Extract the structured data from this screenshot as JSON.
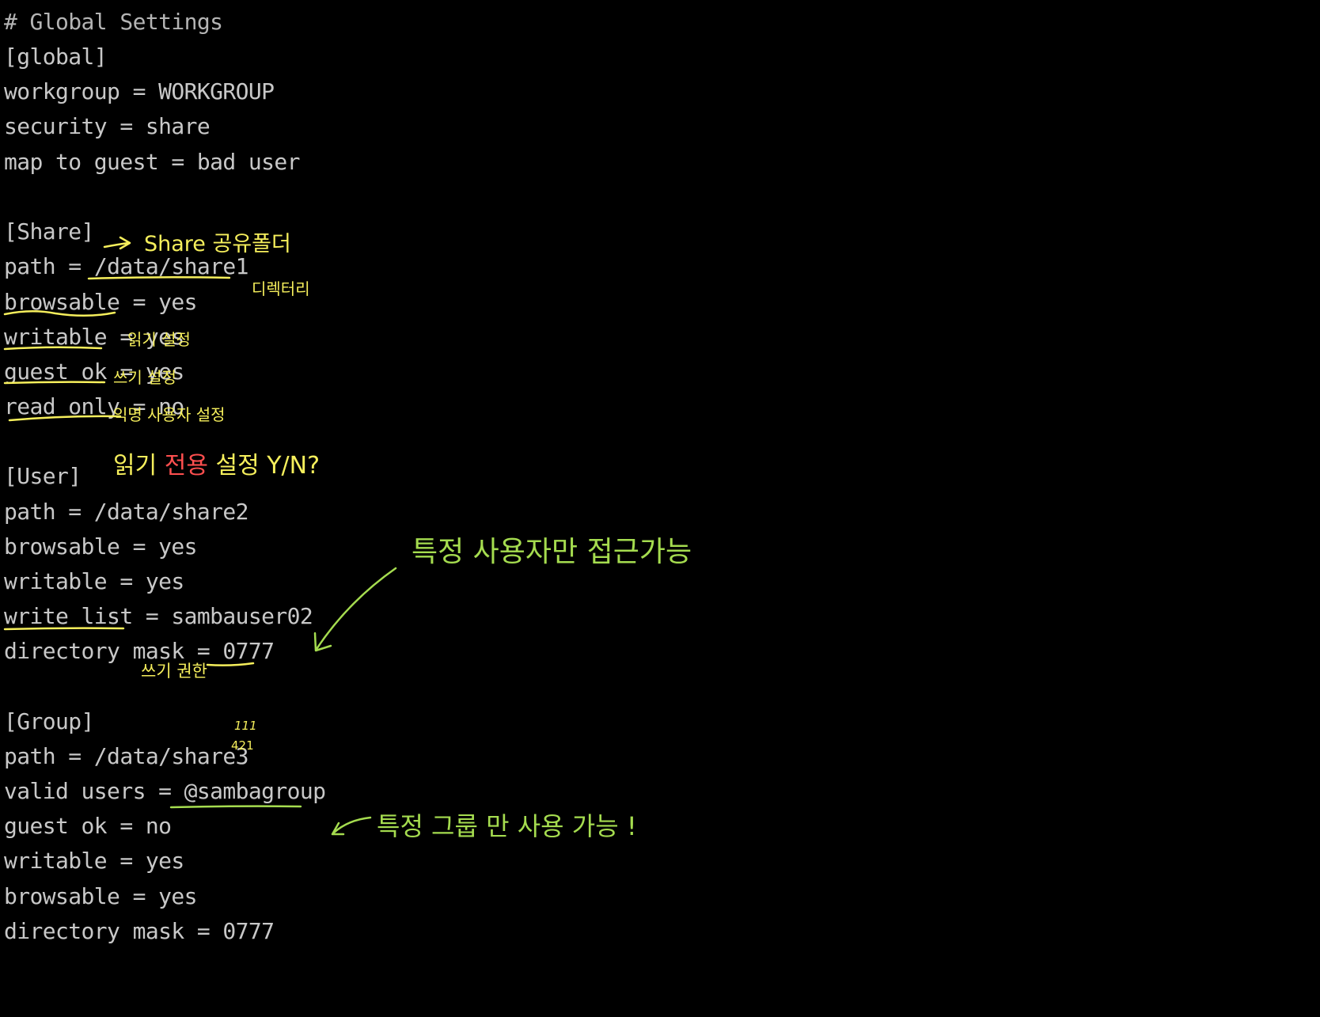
{
  "config": {
    "global_comment": "# Global Settings",
    "global_header": "[global]",
    "global_workgroup": "workgroup = WORKGROUP",
    "global_security": "security = share",
    "global_map_to_guest": "map to guest = bad user",
    "share_header": "[Share]",
    "share_path_key": "path = ",
    "share_path_value": "/data/share1",
    "share_browsable_key": "browsable",
    "share_browsable_rest": " = yes",
    "share_writable_key": "writable",
    "share_writable_rest": " = yes",
    "share_guest_ok_key": "guest ok",
    "share_guest_ok_rest": " = yes",
    "share_read_only_key": "read only",
    "share_read_only_rest": " = no",
    "user_header": "[User]",
    "user_path": "path = /data/share2",
    "user_browsable": "browsable = yes",
    "user_writable": "writable = yes",
    "user_write_list_key": "write list",
    "user_write_list_rest": " = sambauser02",
    "user_directory_mask_key": "directory mask = ",
    "user_directory_mask_value": "0777",
    "group_header": "[Group]",
    "group_path": "path = /data/share3",
    "group_valid_users_key": "valid users = ",
    "group_valid_users_value": "@sambagroup",
    "group_guest_ok": "guest ok = no",
    "group_writable": "writable = yes",
    "group_browsable": "browsable = yes",
    "group_directory_mask": "directory mask = 0777"
  },
  "annotations": {
    "share_folder": "Share 공유폴더",
    "directory": "디렉터리",
    "read_setting": "읽기 설정",
    "write_setting": "쓰기 설정",
    "anonymous_user_setting": "익명 사용자 설정",
    "read_only_prefix": "읽기 ",
    "read_only_highlight": "전용",
    "read_only_suffix": " 설정 Y/N?",
    "specific_user_access": "특정  사용자만   접근가능",
    "write_permission": "쓰기 권한",
    "mask_bits_top": "111",
    "mask_bits_bottom": "421",
    "specific_group_use": "특정 그룹 만  사용 가능 !"
  },
  "colors": {
    "background": "#000000",
    "text": "#c8c8c8",
    "annotation_yellow": "#f6ef5c",
    "annotation_green": "#a5dc4f",
    "annotation_red": "#ff4f4f"
  }
}
